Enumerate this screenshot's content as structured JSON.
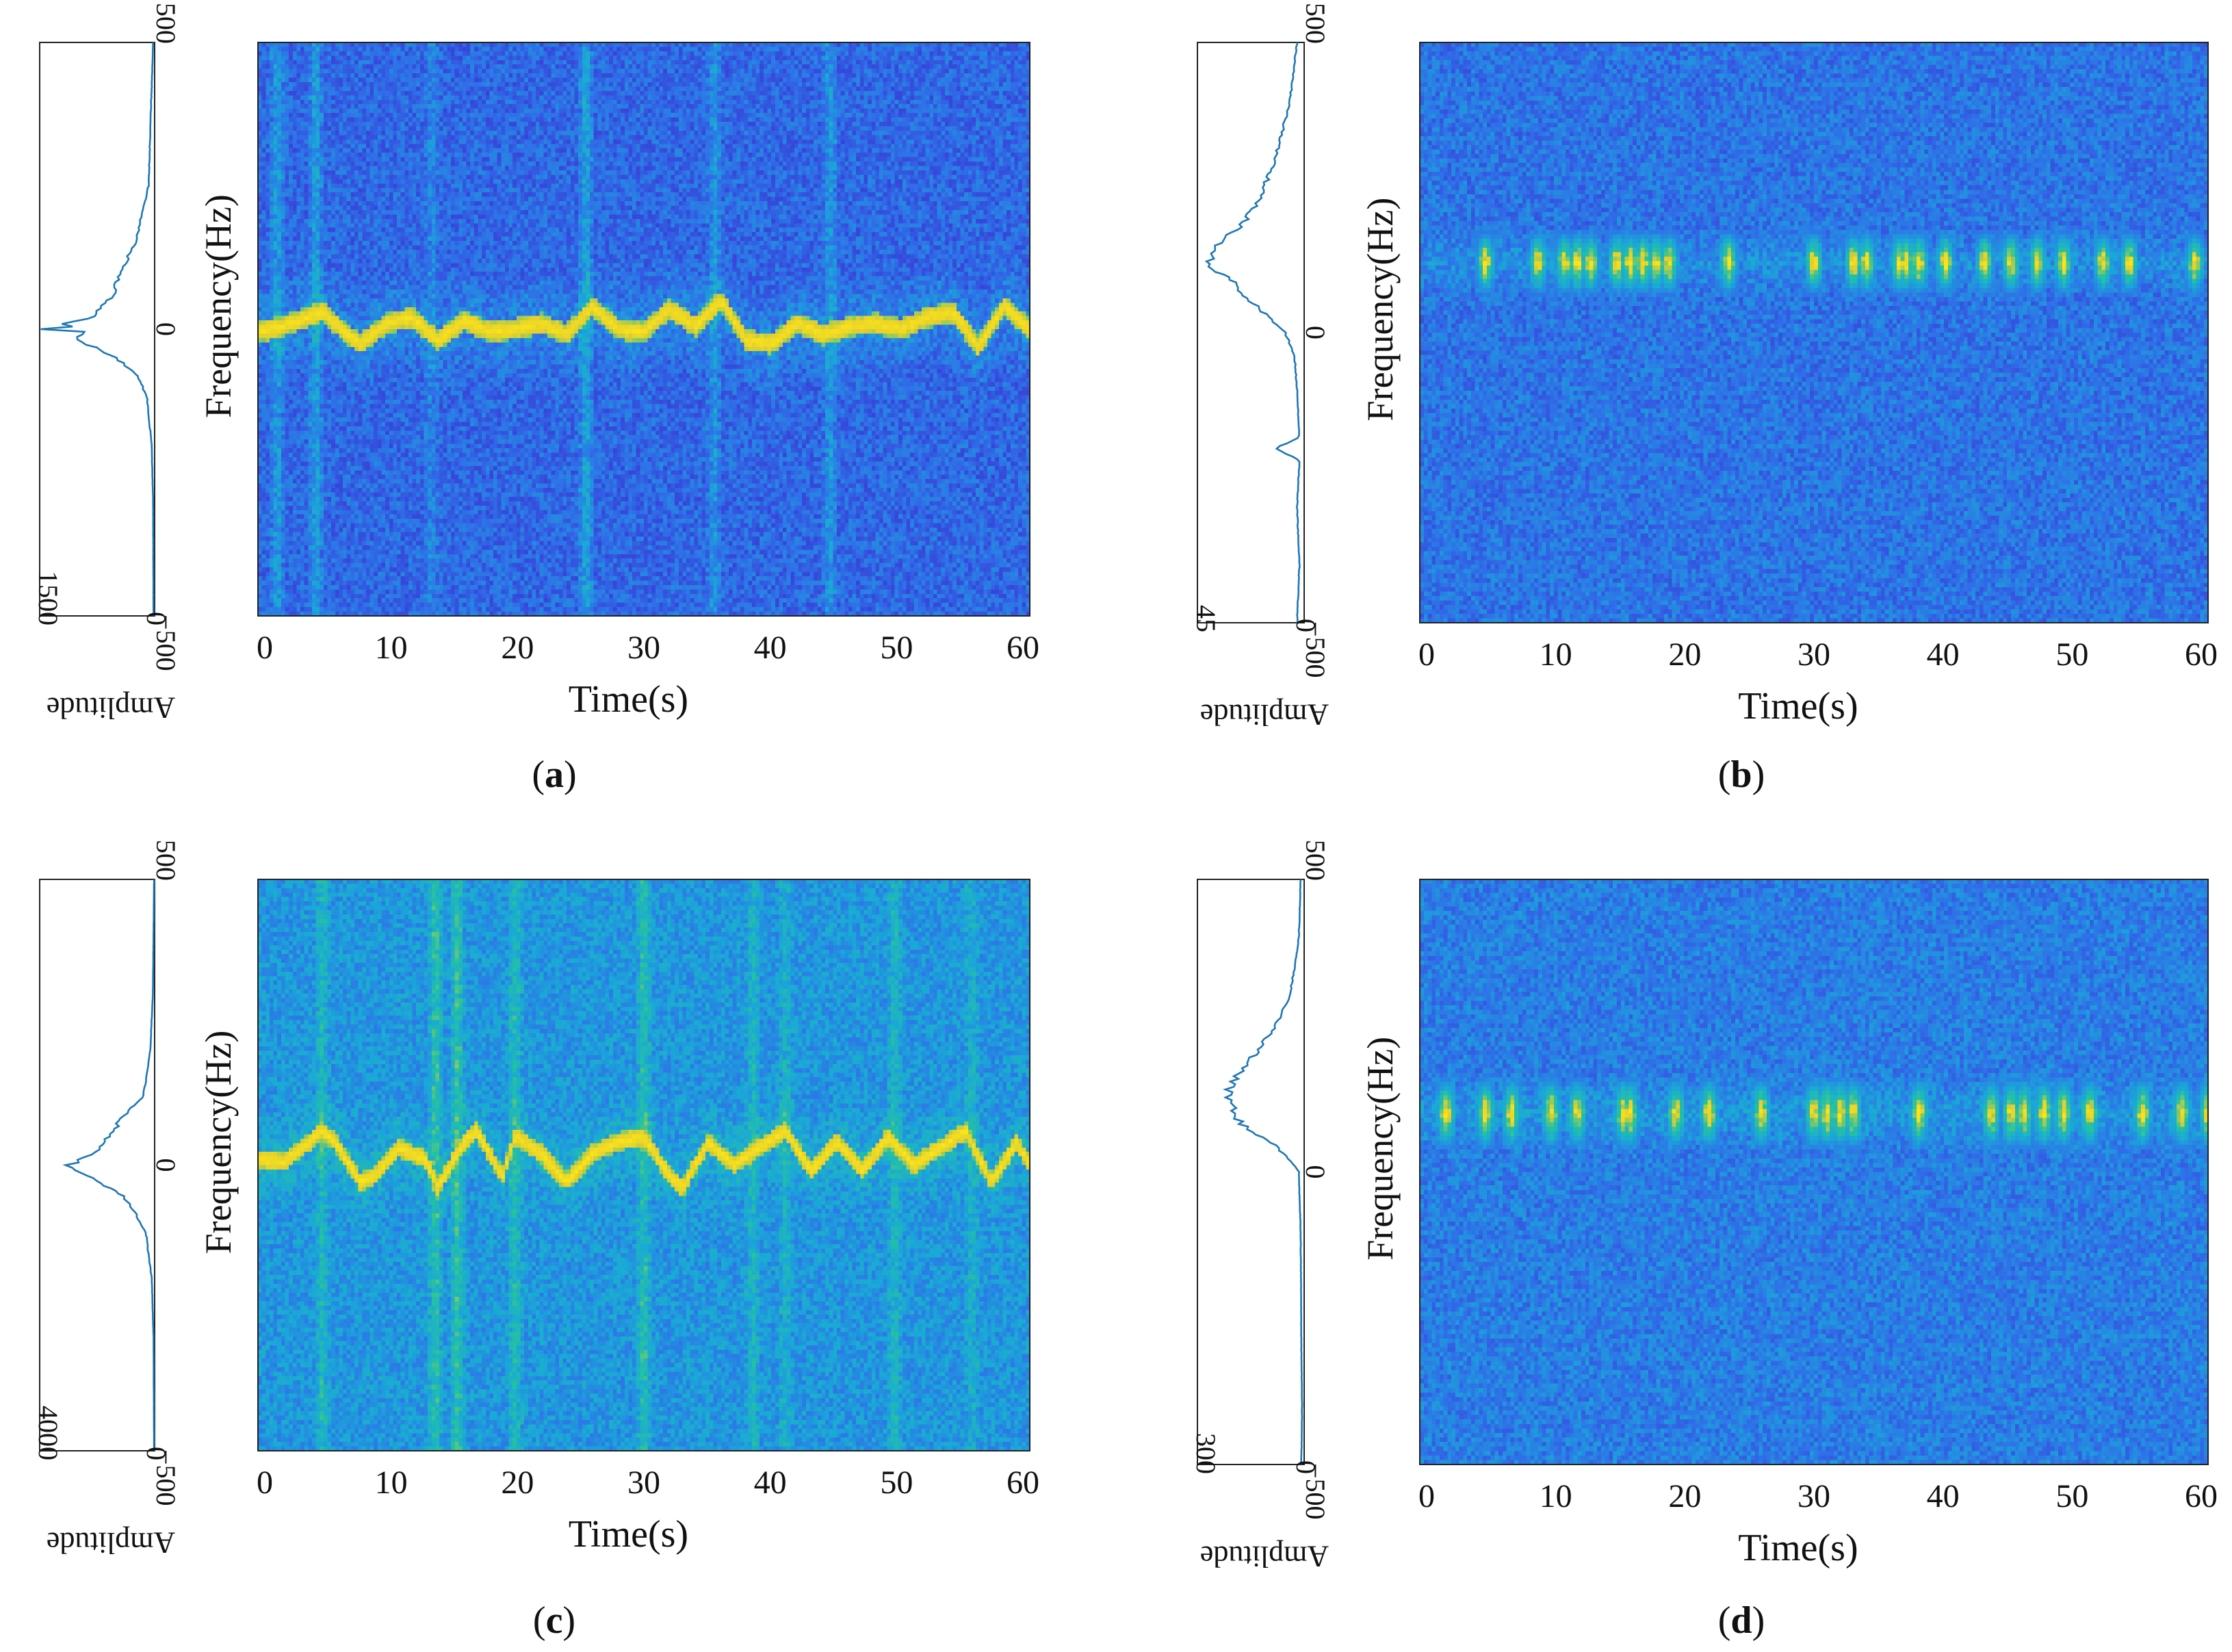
{
  "figure": {
    "panels": [
      {
        "id": "a",
        "caption": "a",
        "caption_prefix": "(",
        "caption_suffix": ")",
        "amplitude_label": "Amplitude",
        "amp_ticks": [
          "1500",
          "0"
        ],
        "spec_title": "",
        "ylabel": "Frequency(Hz)",
        "xlabel": "Time(s)",
        "y_ticks": [
          "500",
          "0",
          "−500"
        ],
        "x_ticks": [
          "0",
          "10",
          "20",
          "30",
          "40",
          "50",
          "60"
        ]
      },
      {
        "id": "b",
        "caption": "b",
        "caption_prefix": "(",
        "caption_suffix": ")",
        "amplitude_label": "Amplitude",
        "amp_ticks": [
          "45",
          "0"
        ],
        "spec_title": "",
        "ylabel": "Frequency(Hz)",
        "xlabel": "Time(s)",
        "y_ticks": [
          "500",
          "0",
          "−500"
        ],
        "x_ticks": [
          "0",
          "10",
          "20",
          "30",
          "40",
          "50",
          "60"
        ]
      },
      {
        "id": "c",
        "caption": "c",
        "caption_prefix": "(",
        "caption_suffix": ")",
        "amplitude_label": "Amplitude",
        "amp_ticks": [
          "4000",
          "0"
        ],
        "spec_title": "",
        "ylabel": "Frequency(Hz)",
        "xlabel": "Time(s)",
        "y_ticks": [
          "500",
          "0",
          "−500"
        ],
        "x_ticks": [
          "0",
          "10",
          "20",
          "30",
          "40",
          "50",
          "60"
        ]
      },
      {
        "id": "d",
        "caption": "d",
        "caption_prefix": "(",
        "caption_suffix": ")",
        "amplitude_label": "Amplitude",
        "amp_ticks": [
          "300",
          "0"
        ],
        "spec_title": "",
        "ylabel": "Frequency(Hz)",
        "xlabel": "Time(s)",
        "y_ticks": [
          "500",
          "0",
          "−500"
        ],
        "x_ticks": [
          "0",
          "10",
          "20",
          "30",
          "40",
          "50",
          "60"
        ]
      }
    ]
  },
  "chart_data": [
    {
      "panel": "a",
      "type": "heatmap",
      "title": "",
      "xlabel": "Time(s)",
      "ylabel": "Frequency(Hz)",
      "xlim": [
        0,
        60
      ],
      "ylim": [
        -500,
        500
      ],
      "xticks": [
        0,
        10,
        20,
        30,
        40,
        50,
        60
      ],
      "yticks": [
        -500,
        0,
        500
      ],
      "colormap": [
        "#3a2fd0",
        "#2f6fe8",
        "#1aa8d8",
        "#25c2a0",
        "#e6d02a",
        "#fae51b"
      ],
      "background_level": 0.18,
      "signal": {
        "style": "trace",
        "intensity": 0.95,
        "freq_curve_t": [
          0,
          2,
          5,
          7,
          8,
          10,
          12,
          14,
          16,
          18,
          20,
          22,
          24,
          26,
          28,
          30,
          32,
          34,
          36,
          38,
          40,
          42,
          44,
          46,
          48,
          50,
          52,
          54,
          56,
          58,
          60
        ],
        "freq_curve_f": [
          -5,
          5,
          30,
          -10,
          -25,
          10,
          20,
          -20,
          15,
          -5,
          0,
          10,
          -10,
          40,
          0,
          -5,
          35,
          5,
          50,
          -20,
          -25,
          10,
          -10,
          5,
          10,
          0,
          20,
          30,
          -30,
          40,
          0
        ],
        "half_width_hz": 18
      },
      "time_bands": [
        {
          "t": 1.5,
          "strength": 0.7
        },
        {
          "t": 4.5,
          "strength": 0.75
        },
        {
          "t": 13.5,
          "strength": 0.4
        },
        {
          "t": 25.5,
          "strength": 0.8
        },
        {
          "t": 35.5,
          "strength": 0.55
        },
        {
          "t": 44.5,
          "strength": 0.6
        }
      ],
      "amplitude": {
        "label": "Amplitude",
        "xlim": [
          0,
          1500
        ],
        "freq": [
          -500,
          -300,
          -200,
          -120,
          -80,
          -50,
          -30,
          -15,
          -5,
          0,
          5,
          10,
          20,
          35,
          60,
          100,
          150,
          250,
          500
        ],
        "amp": [
          15,
          20,
          40,
          100,
          220,
          500,
          800,
          1100,
          900,
          1450,
          1000,
          1200,
          850,
          700,
          550,
          450,
          250,
          80,
          20
        ]
      }
    },
    {
      "panel": "b",
      "type": "heatmap",
      "title": "",
      "xlabel": "Time(s)",
      "ylabel": "Frequency(Hz)",
      "xlim": [
        0,
        60
      ],
      "ylim": [
        -500,
        500
      ],
      "xticks": [
        0,
        10,
        20,
        30,
        40,
        50,
        60
      ],
      "yticks": [
        -500,
        0,
        500
      ],
      "colormap": [
        "#3a2fd0",
        "#2f6fe8",
        "#1aa8d8",
        "#25c2a0",
        "#e6d02a",
        "#fae51b"
      ],
      "background_level": 0.22,
      "signal": {
        "style": "bursts",
        "intensity": 0.9,
        "center_hz": 120,
        "half_width_hz": 55,
        "bursts_t": [
          5,
          9,
          11,
          12,
          13,
          15,
          16,
          17,
          18,
          19,
          23.5,
          30,
          33,
          34,
          36.5,
          37,
          38,
          40,
          43,
          45,
          47,
          49,
          52,
          54,
          59
        ]
      },
      "time_bands": [],
      "amplitude": {
        "label": "Amplitude",
        "xlim": [
          0,
          45
        ],
        "freq": [
          -500,
          -400,
          -300,
          -220,
          -200,
          -180,
          -100,
          -40,
          0,
          30,
          60,
          90,
          110,
          130,
          150,
          180,
          220,
          300,
          400,
          500
        ],
        "amp": [
          3,
          2,
          3,
          2,
          12,
          2,
          3,
          4,
          8,
          16,
          24,
          30,
          38,
          40,
          36,
          28,
          20,
          12,
          6,
          3
        ]
      }
    },
    {
      "panel": "c",
      "type": "heatmap",
      "title": "",
      "xlabel": "Time(s)",
      "ylabel": "Frequency(Hz)",
      "xlim": [
        0,
        60
      ],
      "ylim": [
        -500,
        500
      ],
      "xticks": [
        0,
        10,
        20,
        30,
        40,
        50,
        60
      ],
      "yticks": [
        -500,
        0,
        500
      ],
      "colormap": [
        "#3a2fd0",
        "#2f6fe8",
        "#1aa8d8",
        "#25c2a0",
        "#e6d02a",
        "#fae51b"
      ],
      "background_level": 0.34,
      "signal": {
        "style": "trace",
        "intensity": 0.97,
        "freq_curve_t": [
          0,
          2,
          4,
          5,
          6,
          8,
          9,
          11,
          13,
          14,
          16,
          17,
          19,
          20,
          22,
          24,
          26,
          28,
          30,
          32,
          33,
          35,
          37,
          39,
          41,
          43,
          45,
          47,
          49,
          51,
          53,
          55,
          57,
          59,
          60
        ],
        "freq_curve_f": [
          10,
          5,
          40,
          60,
          40,
          -30,
          -20,
          30,
          10,
          -40,
          40,
          60,
          -20,
          50,
          20,
          -30,
          20,
          40,
          50,
          -20,
          -40,
          40,
          0,
          30,
          60,
          -10,
          40,
          -10,
          50,
          0,
          30,
          60,
          -30,
          40,
          0
        ],
        "half_width_hz": 16
      },
      "time_bands": [
        {
          "t": 5,
          "strength": 0.6
        },
        {
          "t": 13.8,
          "strength": 0.85
        },
        {
          "t": 15.5,
          "strength": 0.85
        },
        {
          "t": 20,
          "strength": 0.7
        },
        {
          "t": 30,
          "strength": 0.8
        },
        {
          "t": 38.5,
          "strength": 0.55
        },
        {
          "t": 41,
          "strength": 0.45
        },
        {
          "t": 49.5,
          "strength": 0.6
        },
        {
          "t": 55.5,
          "strength": 0.45
        }
      ],
      "amplitude": {
        "label": "Amplitude",
        "xlim": [
          0,
          4000
        ],
        "freq": [
          -500,
          -300,
          -200,
          -120,
          -80,
          -50,
          -30,
          -15,
          -5,
          0,
          5,
          15,
          25,
          40,
          60,
          80,
          120,
          200,
          300,
          500
        ],
        "amp": [
          20,
          40,
          100,
          300,
          700,
          1200,
          1900,
          2500,
          2900,
          3100,
          2700,
          2300,
          2000,
          1800,
          1400,
          1200,
          400,
          150,
          60,
          20
        ]
      }
    },
    {
      "panel": "d",
      "type": "heatmap",
      "title": "",
      "xlabel": "Time(s)",
      "ylabel": "Frequency(Hz)",
      "xlim": [
        0,
        60
      ],
      "ylim": [
        -500,
        500
      ],
      "xticks": [
        0,
        10,
        20,
        30,
        40,
        50,
        60
      ],
      "yticks": [
        -500,
        0,
        500
      ],
      "colormap": [
        "#3a2fd0",
        "#2f6fe8",
        "#1aa8d8",
        "#25c2a0",
        "#e6d02a",
        "#fae51b"
      ],
      "background_level": 0.25,
      "signal": {
        "style": "bursts",
        "intensity": 0.85,
        "center_hz": 100,
        "half_width_hz": 60,
        "bursts_t": [
          2,
          5,
          7,
          10,
          12,
          15.5,
          16,
          19.5,
          22,
          26,
          30,
          31,
          32,
          33,
          38,
          43.5,
          45,
          46,
          47.5,
          49,
          51,
          55,
          58,
          60
        ]
      },
      "time_bands": [],
      "amplitude": {
        "label": "Amplitude",
        "xlim": [
          0,
          300
        ],
        "freq": [
          -500,
          -400,
          -300,
          -100,
          0,
          20,
          50,
          70,
          90,
          110,
          130,
          150,
          170,
          200,
          250,
          300,
          400,
          500
        ],
        "amp": [
          8,
          6,
          8,
          10,
          15,
          40,
          90,
          150,
          190,
          200,
          215,
          205,
          180,
          140,
          80,
          40,
          15,
          10
        ]
      }
    }
  ]
}
